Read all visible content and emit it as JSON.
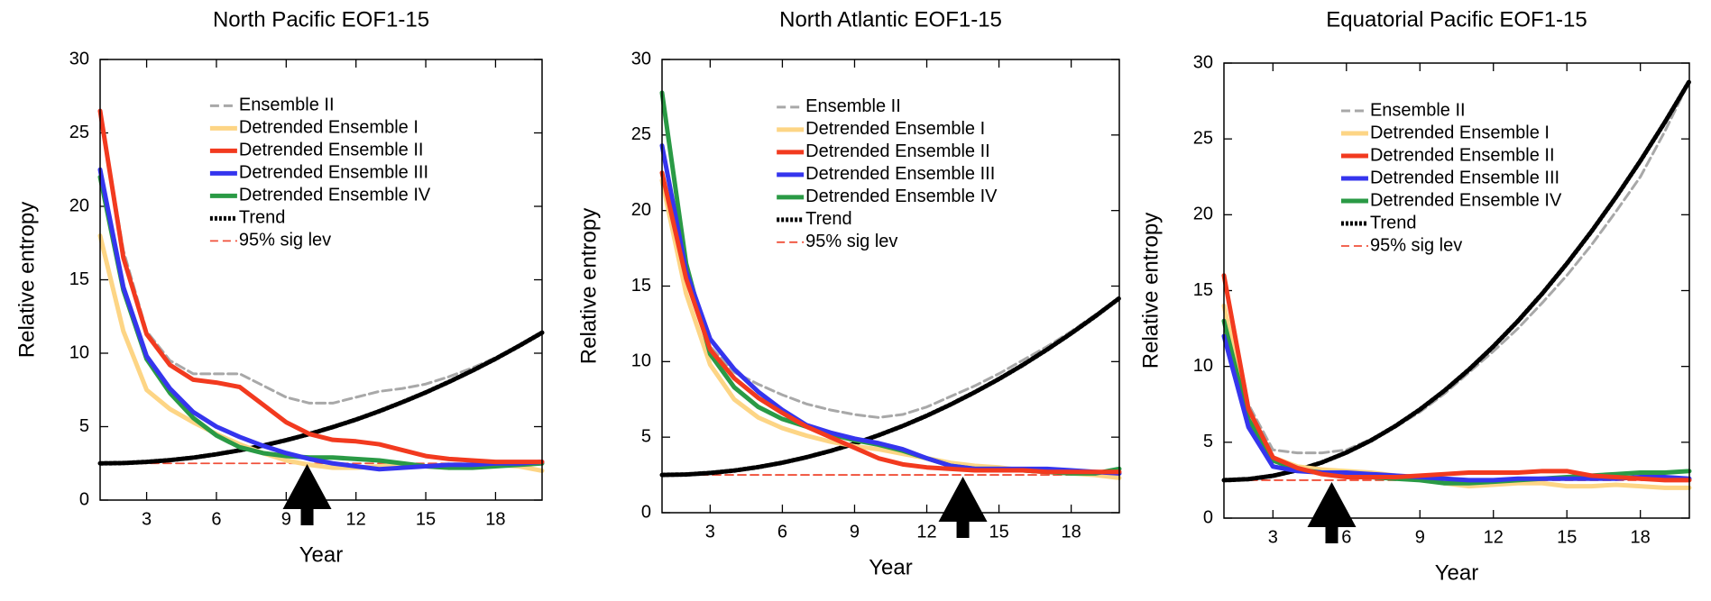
{
  "chart_data": [
    {
      "type": "line",
      "title": "North Pacific EOF1-15",
      "x_label": "Year",
      "y_label": "Relative entropy",
      "x": [
        1,
        2,
        3,
        4,
        5,
        6,
        7,
        8,
        9,
        10,
        11,
        12,
        13,
        14,
        15,
        16,
        17,
        18,
        19,
        20
      ],
      "xlim": [
        1,
        20
      ],
      "xticks": [
        3,
        6,
        9,
        12,
        15,
        18
      ],
      "ylim": [
        0,
        30
      ],
      "yticks": [
        0,
        5,
        10,
        15,
        20,
        25,
        30
      ],
      "arrow_x": 9.9,
      "series": [
        {
          "name": "Ensemble II",
          "color": "#a8a8a8",
          "style": "dashed",
          "values": [
            26.5,
            17,
            11.5,
            9.5,
            8.6,
            8.6,
            8.6,
            7.8,
            7,
            6.6,
            6.6,
            7,
            7.4,
            7.6,
            7.9,
            8.4,
            9,
            9.7,
            10.5,
            11.4
          ]
        },
        {
          "name": "Detrended Ensemble I",
          "color": "#fdd585",
          "style": "solid",
          "values": [
            18,
            11.5,
            7.5,
            6.2,
            5.3,
            4.5,
            3.8,
            3.2,
            2.7,
            2.4,
            2.2,
            2.2,
            2.3,
            2.4,
            2.3,
            2.2,
            2.3,
            2.4,
            2.3,
            2.0
          ]
        },
        {
          "name": "Detrended Ensemble II",
          "color": "#f23a1f",
          "style": "solid",
          "values": [
            26.5,
            16.5,
            11.3,
            9.2,
            8.2,
            8,
            7.7,
            6.5,
            5.3,
            4.5,
            4.1,
            4.0,
            3.8,
            3.4,
            3.0,
            2.8,
            2.7,
            2.6,
            2.6,
            2.6
          ]
        },
        {
          "name": "Detrended Ensemble III",
          "color": "#3535ee",
          "style": "solid",
          "values": [
            22.5,
            14.5,
            9.8,
            7.6,
            6.0,
            5.0,
            4.3,
            3.7,
            3.2,
            2.8,
            2.5,
            2.3,
            2.1,
            2.2,
            2.3,
            2.4,
            2.4,
            2.5,
            2.5,
            2.6
          ]
        },
        {
          "name": "Detrended Ensemble IV",
          "color": "#2a9a45",
          "style": "solid",
          "values": [
            22,
            14.3,
            9.6,
            7.3,
            5.6,
            4.4,
            3.6,
            3.2,
            3.0,
            2.9,
            2.9,
            2.8,
            2.7,
            2.5,
            2.3,
            2.2,
            2.2,
            2.3,
            2.4,
            2.5
          ]
        },
        {
          "name": "Trend",
          "color": "#000000",
          "style": "dotted",
          "values": [
            2.5,
            2.52,
            2.6,
            2.72,
            2.89,
            3.12,
            3.39,
            3.71,
            4.08,
            4.5,
            4.97,
            5.48,
            6.05,
            6.67,
            7.33,
            8.05,
            8.81,
            9.62,
            10.49,
            11.4
          ]
        },
        {
          "name": "95% sig lev",
          "color": "#f0503a",
          "style": "thin-dashed",
          "values": [
            2.5,
            2.5,
            2.5,
            2.5,
            2.5,
            2.5,
            2.5,
            2.5,
            2.5,
            2.5,
            2.5,
            2.5,
            2.5,
            2.5,
            2.5,
            2.5,
            2.5,
            2.5,
            2.5,
            2.5
          ]
        }
      ]
    },
    {
      "type": "line",
      "title": "North Atlantic EOF1-15",
      "x_label": "Year",
      "y_label": "Relative entropy",
      "x": [
        1,
        2,
        3,
        4,
        5,
        6,
        7,
        8,
        9,
        10,
        11,
        12,
        13,
        14,
        15,
        16,
        17,
        18,
        19,
        20
      ],
      "xlim": [
        1,
        20
      ],
      "xticks": [
        3,
        6,
        9,
        12,
        15,
        18
      ],
      "ylim": [
        0,
        30
      ],
      "yticks": [
        0,
        5,
        10,
        15,
        20,
        25,
        30
      ],
      "arrow_x": 13.5,
      "series": [
        {
          "name": "Ensemble II",
          "color": "#a8a8a8",
          "style": "dashed",
          "values": [
            22,
            15.5,
            11,
            9.3,
            8.5,
            7.8,
            7.2,
            6.8,
            6.5,
            6.3,
            6.5,
            7,
            7.7,
            8.4,
            9.2,
            10.1,
            11,
            12,
            13.1,
            14.2
          ]
        },
        {
          "name": "Detrended Ensemble I",
          "color": "#fdd585",
          "style": "solid",
          "values": [
            22,
            14.5,
            9.8,
            7.5,
            6.3,
            5.6,
            5.1,
            4.7,
            4.4,
            4.2,
            3.9,
            3.6,
            3.3,
            3.1,
            3.0,
            2.8,
            2.7,
            2.6,
            2.5,
            2.3
          ]
        },
        {
          "name": "Detrended Ensemble II",
          "color": "#f23a1f",
          "style": "solid",
          "values": [
            22.5,
            15.5,
            10.8,
            8.9,
            7.6,
            6.6,
            5.7,
            5.0,
            4.3,
            3.6,
            3.2,
            3.0,
            2.9,
            2.8,
            2.8,
            2.8,
            2.7,
            2.7,
            2.7,
            2.7
          ]
        },
        {
          "name": "Detrended Ensemble III",
          "color": "#3535ee",
          "style": "solid",
          "values": [
            24.3,
            16,
            11.5,
            9.5,
            8,
            6.8,
            5.8,
            5.3,
            4.9,
            4.6,
            4.2,
            3.6,
            3.1,
            2.9,
            2.9,
            2.9,
            2.9,
            2.8,
            2.7,
            2.6
          ]
        },
        {
          "name": "Detrended Ensemble IV",
          "color": "#2a9a45",
          "style": "solid",
          "values": [
            27.8,
            16.5,
            10.5,
            8.3,
            7,
            6.2,
            5.7,
            5.2,
            4.8,
            4.5,
            4.1,
            3.6,
            3.1,
            2.9,
            2.9,
            2.8,
            2.7,
            2.6,
            2.6,
            2.9
          ]
        },
        {
          "name": "Trend",
          "color": "#000000",
          "style": "dotted",
          "values": [
            2.5,
            2.53,
            2.63,
            2.79,
            3.02,
            3.31,
            3.67,
            4.09,
            4.57,
            5.13,
            5.74,
            6.42,
            7.17,
            7.98,
            8.85,
            9.79,
            10.8,
            11.87,
            13.0,
            14.2
          ]
        },
        {
          "name": "95% sig lev",
          "color": "#f0503a",
          "style": "thin-dashed",
          "values": [
            2.5,
            2.5,
            2.5,
            2.5,
            2.5,
            2.5,
            2.5,
            2.5,
            2.5,
            2.5,
            2.5,
            2.5,
            2.5,
            2.5,
            2.5,
            2.5,
            2.5,
            2.5,
            2.5,
            2.5
          ]
        }
      ]
    },
    {
      "type": "line",
      "title": "Equatorial Pacific EOF1-15",
      "x_label": "Year",
      "y_label": "Relative entropy",
      "x": [
        1,
        2,
        3,
        4,
        5,
        6,
        7,
        8,
        9,
        10,
        11,
        12,
        13,
        14,
        15,
        16,
        17,
        18,
        19,
        20
      ],
      "xlim": [
        1,
        20
      ],
      "xticks": [
        3,
        6,
        9,
        12,
        15,
        18
      ],
      "ylim": [
        0,
        30
      ],
      "yticks": [
        0,
        5,
        10,
        15,
        20,
        25,
        30
      ],
      "arrow_x": 5.4,
      "series": [
        {
          "name": "Ensemble II",
          "color": "#a8a8a8",
          "style": "dashed",
          "values": [
            16,
            7.5,
            4.5,
            4.3,
            4.3,
            4.5,
            5.2,
            6,
            7,
            8.2,
            9.6,
            11,
            12.5,
            14.2,
            16,
            18,
            20.2,
            22.5,
            25.5,
            28.8
          ]
        },
        {
          "name": "Detrended Ensemble I",
          "color": "#fdd585",
          "style": "solid",
          "values": [
            14,
            7,
            4.0,
            3.4,
            3.2,
            3.1,
            3.0,
            2.8,
            2.6,
            2.3,
            2.1,
            2.2,
            2.3,
            2.3,
            2.1,
            2.1,
            2.2,
            2.1,
            2.0,
            2.0
          ]
        },
        {
          "name": "Detrended Ensemble II",
          "color": "#f23a1f",
          "style": "solid",
          "values": [
            16,
            7.2,
            4.0,
            3.3,
            2.9,
            2.7,
            2.7,
            2.7,
            2.8,
            2.9,
            3.0,
            3.0,
            3.0,
            3.1,
            3.1,
            2.8,
            2.7,
            2.6,
            2.5,
            2.5
          ]
        },
        {
          "name": "Detrended Ensemble III",
          "color": "#3535ee",
          "style": "solid",
          "values": [
            12,
            6,
            3.4,
            3.1,
            3.0,
            3.0,
            2.9,
            2.8,
            2.7,
            2.6,
            2.5,
            2.5,
            2.6,
            2.6,
            2.6,
            2.6,
            2.6,
            2.7,
            2.7,
            2.6
          ]
        },
        {
          "name": "Detrended Ensemble IV",
          "color": "#2a9a45",
          "style": "solid",
          "values": [
            13,
            6.5,
            3.8,
            3.2,
            3.0,
            2.8,
            2.7,
            2.6,
            2.5,
            2.3,
            2.3,
            2.4,
            2.5,
            2.6,
            2.7,
            2.8,
            2.9,
            3.0,
            3.0,
            3.1
          ]
        },
        {
          "name": "Trend",
          "color": "#000000",
          "style": "dotted",
          "values": [
            2.5,
            2.57,
            2.79,
            3.16,
            3.67,
            4.32,
            5.12,
            6.07,
            7.16,
            8.4,
            9.79,
            11.32,
            12.99,
            14.81,
            16.78,
            18.89,
            21.15,
            23.55,
            26.1,
            28.8
          ]
        },
        {
          "name": "95% sig lev",
          "color": "#f0503a",
          "style": "thin-dashed",
          "values": [
            2.5,
            2.5,
            2.5,
            2.5,
            2.5,
            2.5,
            2.5,
            2.5,
            2.5,
            2.5,
            2.5,
            2.5,
            2.5,
            2.5,
            2.5,
            2.5,
            2.5,
            2.5,
            2.5,
            2.5
          ]
        }
      ]
    }
  ]
}
